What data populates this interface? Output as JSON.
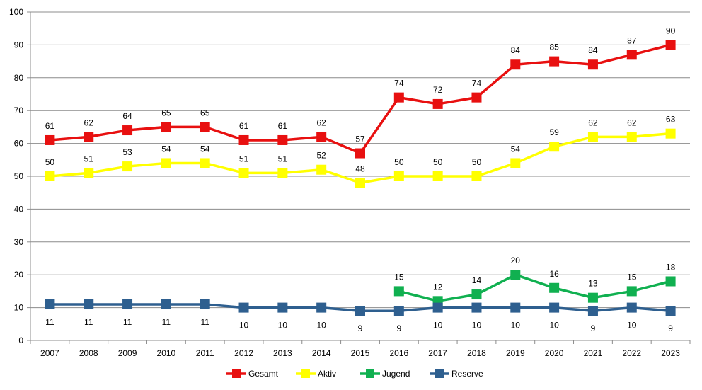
{
  "chart_data": {
    "type": "line",
    "title": "",
    "xlabel": "",
    "ylabel": "",
    "ylim": [
      0,
      100
    ],
    "yticks": [
      0,
      10,
      20,
      30,
      40,
      50,
      60,
      70,
      80,
      90,
      100
    ],
    "grid": true,
    "legend_position": "bottom",
    "x": [
      "2007",
      "2008",
      "2009",
      "2010",
      "2011",
      "2012",
      "2013",
      "2014",
      "2015",
      "2016",
      "2017",
      "2018",
      "2019",
      "2020",
      "2021",
      "2022",
      "2023"
    ],
    "series": [
      {
        "name": "Gesamt",
        "color": "#e81010",
        "label_position": "above",
        "values": [
          61,
          62,
          64,
          65,
          65,
          61,
          61,
          62,
          57,
          74,
          72,
          74,
          84,
          85,
          84,
          87,
          90
        ]
      },
      {
        "name": "Aktiv",
        "color": "#ffff00",
        "label_position": "above",
        "values": [
          50,
          51,
          53,
          54,
          54,
          51,
          51,
          52,
          48,
          50,
          50,
          50,
          54,
          59,
          62,
          62,
          63
        ]
      },
      {
        "name": "Jugend",
        "color": "#10b050",
        "label_position": "above",
        "values": [
          null,
          null,
          null,
          null,
          null,
          null,
          null,
          null,
          null,
          15,
          12,
          14,
          20,
          16,
          13,
          15,
          18
        ]
      },
      {
        "name": "Reserve",
        "color": "#2e5f8f",
        "label_position": "below",
        "values": [
          11,
          11,
          11,
          11,
          11,
          10,
          10,
          10,
          9,
          9,
          10,
          10,
          10,
          10,
          9,
          10,
          9
        ]
      }
    ]
  }
}
